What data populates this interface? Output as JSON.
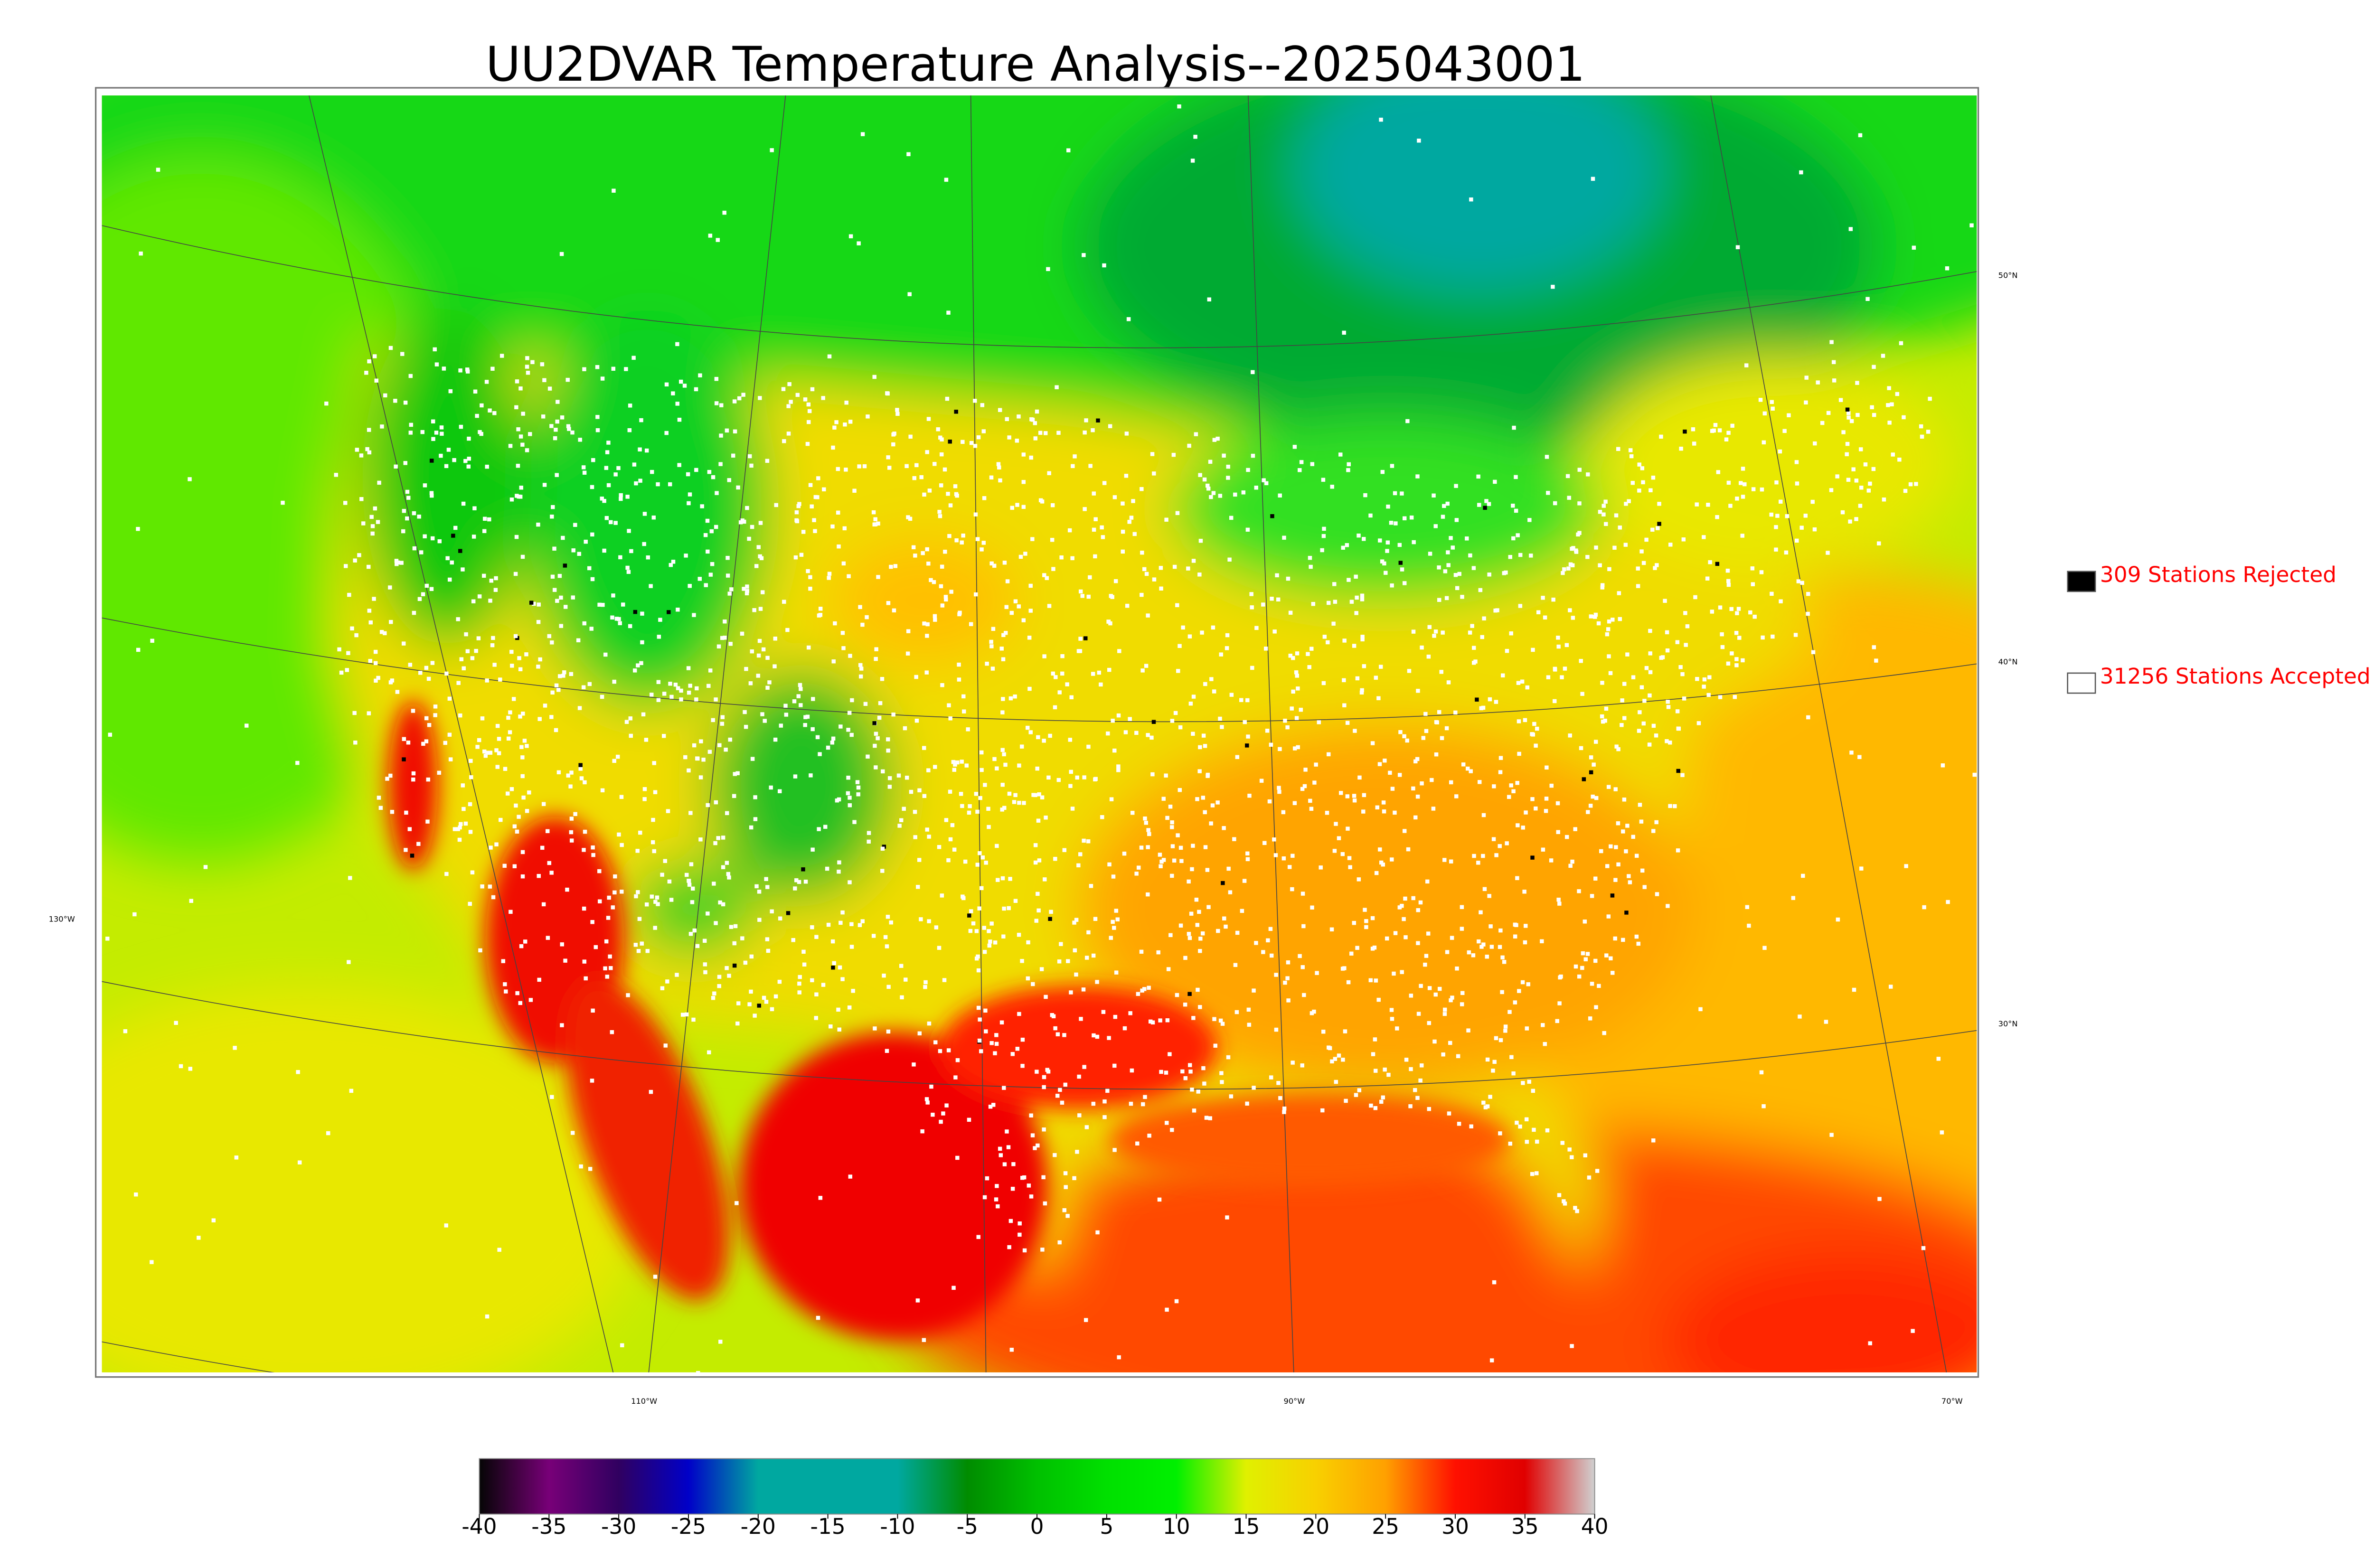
{
  "title": "UU2DVAR Temperature Analysis--2025043001",
  "legend": [
    {
      "label": "309 Stations Rejected",
      "marker": "#000000"
    },
    {
      "label": "31256 Stations Accepted",
      "marker": "#ffffff"
    }
  ],
  "graticule": {
    "latitude": [
      "50°N",
      "40°N",
      "30°N"
    ],
    "longitude": [
      "130°W",
      "110°W",
      "90°W",
      "70°W"
    ]
  },
  "colorbar": {
    "lim": [
      -40,
      40
    ],
    "ticks": [
      -40,
      -35,
      -30,
      -25,
      -20,
      -15,
      -10,
      -5,
      0,
      5,
      10,
      15,
      20,
      25,
      30,
      35,
      40
    ],
    "colormap": [
      "#050505",
      "#780078",
      "#300060",
      "#0000c8",
      "#00a8a0",
      "#00a8a0",
      "#00a8a0",
      "#008c00",
      "#00c000",
      "#00e000",
      "#00f000",
      "#e0f000",
      "#f8d000",
      "#ffa000",
      "#ff1000",
      "#e00000",
      "#d0d0d0"
    ]
  }
}
